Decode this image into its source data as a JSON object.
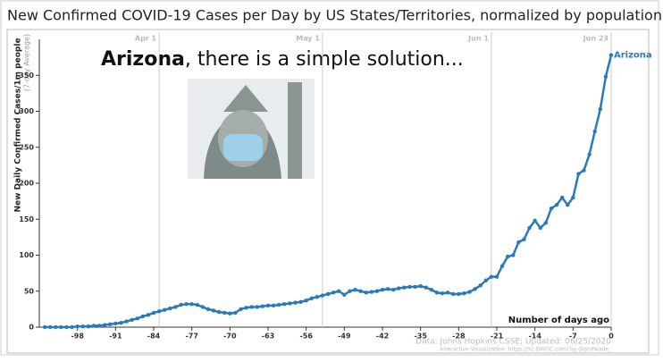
{
  "chart_data": {
    "type": "line",
    "title": "New Confirmed COVID-19 Cases per Day by US States/Territories, normalized by population",
    "headline": {
      "bold": "Arizona",
      "rest": ", there is a simple solution..."
    },
    "ylabel": "New Daily Confirmed Cases/1m people",
    "ylabel_sub": "(7-day Average)",
    "xlabel": "Number of days ago",
    "source": "Data: Johns Hopkins CSSE; Updated: 06/25/2020",
    "credit": "Interactive Visualization: https://91-DIVOC.com/ by @profwade_",
    "date_markers": [
      {
        "label": "Apr 1",
        "x": -83
      },
      {
        "label": "May 1",
        "x": -53
      },
      {
        "label": "Jun 1",
        "x": -22
      },
      {
        "label": "Jun 23",
        "x": 0
      }
    ],
    "x": [
      -104,
      -103,
      -102,
      -101,
      -100,
      -99,
      -98,
      -97,
      -96,
      -95,
      -94,
      -93,
      -92,
      -91,
      -90,
      -89,
      -88,
      -87,
      -86,
      -85,
      -84,
      -83,
      -82,
      -81,
      -80,
      -79,
      -78,
      -77,
      -76,
      -75,
      -74,
      -73,
      -72,
      -71,
      -70,
      -69,
      -68,
      -67,
      -66,
      -65,
      -64,
      -63,
      -62,
      -61,
      -60,
      -59,
      -58,
      -57,
      -56,
      -55,
      -54,
      -53,
      -52,
      -51,
      -50,
      -49,
      -48,
      -47,
      -46,
      -45,
      -44,
      -43,
      -42,
      -41,
      -40,
      -39,
      -38,
      -37,
      -36,
      -35,
      -34,
      -33,
      -32,
      -31,
      -30,
      -29,
      -28,
      -27,
      -26,
      -25,
      -24,
      -23,
      -22,
      -21,
      -20,
      -19,
      -18,
      -17,
      -16,
      -15,
      -14,
      -13,
      -12,
      -11,
      -10,
      -9,
      -8,
      -7,
      -6,
      -5,
      -4,
      -3,
      -2,
      -1,
      0
    ],
    "series": [
      {
        "name": "Arizona",
        "color": "#2a7ab9",
        "values": [
          0,
          0,
          0,
          0,
          0,
          0,
          1,
          1,
          1,
          2,
          2,
          3,
          4,
          5,
          6,
          8,
          10,
          12,
          15,
          17,
          20,
          22,
          24,
          26,
          28,
          31,
          32,
          32,
          31,
          28,
          25,
          23,
          21,
          20,
          19,
          20,
          25,
          27,
          28,
          28,
          29,
          30,
          30,
          31,
          32,
          33,
          34,
          35,
          37,
          40,
          42,
          44,
          46,
          48,
          50,
          45,
          50,
          52,
          50,
          48,
          49,
          50,
          52,
          53,
          52,
          54,
          55,
          56,
          56,
          57,
          55,
          52,
          48,
          47,
          48,
          46,
          46,
          47,
          49,
          53,
          58,
          65,
          70,
          70,
          85,
          98,
          100,
          118,
          122,
          138,
          148,
          138,
          145,
          165,
          170,
          180,
          170,
          180,
          213,
          218,
          240,
          272,
          303,
          348,
          378
        ]
      }
    ],
    "xlim": [
      -105,
      0
    ],
    "ylim": [
      0,
      400
    ],
    "xticks": [
      -98,
      -91,
      -84,
      -77,
      -70,
      -63,
      -56,
      -49,
      -42,
      -35,
      -28,
      -21,
      -14,
      -7,
      0
    ],
    "yticks": [
      0,
      50,
      100,
      150,
      200,
      250,
      300,
      350
    ]
  }
}
